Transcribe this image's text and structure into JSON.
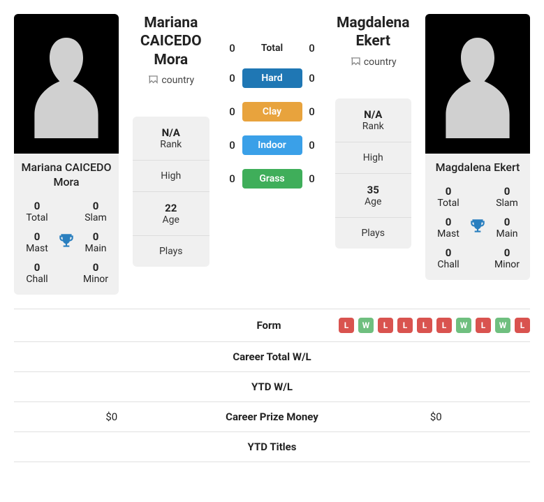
{
  "players": {
    "left": {
      "name": "Mariana CAICEDO Mora",
      "country_alt": "country",
      "titles": {
        "total": 0,
        "slam": 0,
        "mast": 0,
        "main": 0,
        "chall": 0,
        "minor": 0
      },
      "labels": {
        "total": "Total",
        "slam": "Slam",
        "mast": "Mast",
        "main": "Main",
        "chall": "Chall",
        "minor": "Minor"
      },
      "rank": "N/A",
      "high": "",
      "age": "22",
      "plays": ""
    },
    "right": {
      "name": "Magdalena Ekert",
      "country_alt": "country",
      "titles": {
        "total": 0,
        "slam": 0,
        "mast": 0,
        "main": 0,
        "chall": 0,
        "minor": 0
      },
      "labels": {
        "total": "Total",
        "slam": "Slam",
        "mast": "Mast",
        "main": "Main",
        "chall": "Chall",
        "minor": "Minor"
      },
      "rank": "N/A",
      "high": "",
      "age": "35",
      "plays": ""
    }
  },
  "info_labels": {
    "rank": "Rank",
    "high": "High",
    "age": "Age",
    "plays": "Plays"
  },
  "h2h": {
    "rows": [
      {
        "left": "0",
        "label": "Total",
        "right": "0",
        "pill": false,
        "color": ""
      },
      {
        "left": "0",
        "label": "Hard",
        "right": "0",
        "pill": true,
        "color": "#1f77b4"
      },
      {
        "left": "0",
        "label": "Clay",
        "right": "0",
        "pill": true,
        "color": "#e8a33d"
      },
      {
        "left": "0",
        "label": "Indoor",
        "right": "0",
        "pill": true,
        "color": "#3aa0e8"
      },
      {
        "left": "0",
        "label": "Grass",
        "right": "0",
        "pill": true,
        "color": "#3fae5a"
      }
    ]
  },
  "stats": {
    "rows": [
      {
        "key": "form",
        "label": "Form",
        "left": "",
        "right_form": [
          "L",
          "W",
          "L",
          "L",
          "L",
          "L",
          "W",
          "L",
          "W",
          "L"
        ]
      },
      {
        "key": "career_wl",
        "label": "Career Total W/L",
        "left": "",
        "right": ""
      },
      {
        "key": "ytd_wl",
        "label": "YTD W/L",
        "left": "",
        "right": ""
      },
      {
        "key": "career_prize",
        "label": "Career Prize Money",
        "left": "$0",
        "right": "$0"
      },
      {
        "key": "ytd_titles",
        "label": "YTD Titles",
        "left": "",
        "right": ""
      }
    ]
  },
  "colors": {
    "trophy": "#2a7fbf",
    "badge_W": "#6fbf7f",
    "badge_L": "#d9534f",
    "card_bg": "#f0f0f0"
  }
}
